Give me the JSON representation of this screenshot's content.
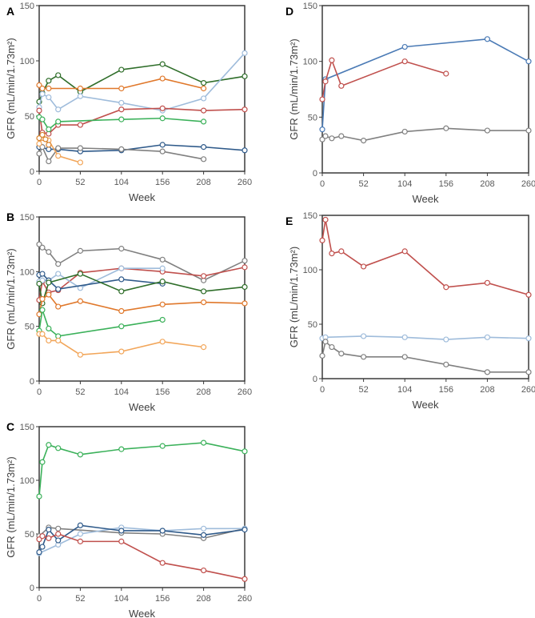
{
  "chart_data": [
    {
      "panel": "A",
      "type": "line",
      "xlabel": "Week",
      "ylabel": "GFR (mL/min/1.73m²)",
      "xlim": [
        0,
        260
      ],
      "ylim": [
        0,
        150
      ],
      "xticks": [
        0,
        52,
        104,
        156,
        208,
        260
      ],
      "yticks": [
        0,
        50,
        100,
        150
      ],
      "grid": false,
      "series": [
        {
          "color": "#2f6e2a",
          "points": [
            [
              0,
              63
            ],
            [
              4,
              71
            ],
            [
              12,
              82
            ],
            [
              24,
              87
            ],
            [
              52,
              72
            ],
            [
              104,
              92
            ],
            [
              156,
              97
            ],
            [
              208,
              80
            ],
            [
              260,
              86
            ]
          ]
        },
        {
          "color": "#e0782b",
          "points": [
            [
              0,
              78
            ],
            [
              4,
              75
            ],
            [
              12,
              75
            ],
            [
              52,
              75
            ],
            [
              104,
              75
            ],
            [
              156,
              84
            ],
            [
              208,
              75
            ]
          ]
        },
        {
          "color": "#9fbcdb",
          "points": [
            [
              0,
              58
            ],
            [
              4,
              70
            ],
            [
              12,
              67
            ],
            [
              24,
              56
            ],
            [
              52,
              68
            ],
            [
              104,
              62
            ],
            [
              156,
              55
            ],
            [
              208,
              66
            ],
            [
              260,
              107
            ]
          ]
        },
        {
          "color": "#c0504d",
          "points": [
            [
              0,
              55
            ],
            [
              4,
              35
            ],
            [
              12,
              34
            ],
            [
              24,
              42
            ],
            [
              52,
              42
            ],
            [
              104,
              56
            ],
            [
              156,
              57
            ],
            [
              208,
              55
            ],
            [
              260,
              56
            ]
          ]
        },
        {
          "color": "#3bb15a",
          "points": [
            [
              0,
              49
            ],
            [
              4,
              47
            ],
            [
              12,
              38
            ],
            [
              24,
              45
            ],
            [
              104,
              47
            ],
            [
              156,
              48
            ],
            [
              208,
              45
            ]
          ]
        },
        {
          "color": "#2f5a8a",
          "points": [
            [
              0,
              22
            ],
            [
              12,
              20
            ],
            [
              24,
              20
            ],
            [
              52,
              18
            ],
            [
              104,
              19
            ],
            [
              156,
              24
            ],
            [
              208,
              22
            ],
            [
              260,
              19
            ]
          ]
        },
        {
          "color": "#808080",
          "points": [
            [
              0,
              16
            ],
            [
              4,
              22
            ],
            [
              12,
              9
            ],
            [
              24,
              21
            ],
            [
              52,
              21
            ],
            [
              104,
              20
            ],
            [
              156,
              18
            ],
            [
              208,
              11
            ]
          ]
        },
        {
          "color": "#f2a65a",
          "points": [
            [
              0,
              25
            ],
            [
              4,
              30
            ],
            [
              12,
              28
            ],
            [
              24,
              14
            ],
            [
              52,
              8
            ]
          ]
        },
        {
          "color": "#d9822b",
          "points": [
            [
              0,
              30
            ],
            [
              4,
              33
            ],
            [
              8,
              29
            ],
            [
              12,
              24
            ]
          ]
        }
      ]
    },
    {
      "panel": "B",
      "type": "line",
      "xlabel": "Week",
      "ylabel": "GFR (mL/min/1.73m²)",
      "xlim": [
        0,
        260
      ],
      "ylim": [
        0,
        150
      ],
      "xticks": [
        0,
        52,
        104,
        156,
        208,
        260
      ],
      "yticks": [
        0,
        50,
        100,
        150
      ],
      "grid": false,
      "series": [
        {
          "color": "#808080",
          "points": [
            [
              0,
              125
            ],
            [
              4,
              122
            ],
            [
              12,
              118
            ],
            [
              24,
              107
            ],
            [
              52,
              119
            ],
            [
              104,
              121
            ],
            [
              156,
              111
            ],
            [
              208,
              92
            ],
            [
              260,
              110
            ]
          ]
        },
        {
          "color": "#c0504d",
          "points": [
            [
              0,
              74
            ],
            [
              4,
              91
            ],
            [
              12,
              81
            ],
            [
              24,
              83
            ],
            [
              52,
              99
            ],
            [
              104,
              103
            ],
            [
              156,
              100
            ],
            [
              208,
              96
            ],
            [
              260,
              104
            ]
          ]
        },
        {
          "color": "#9fbcdb",
          "points": [
            [
              0,
              91
            ],
            [
              4,
              92
            ],
            [
              12,
              92
            ],
            [
              24,
              98
            ],
            [
              52,
              85
            ],
            [
              104,
              103
            ],
            [
              156,
              103
            ]
          ]
        },
        {
          "color": "#2f5a8a",
          "points": [
            [
              0,
              97
            ],
            [
              4,
              98
            ],
            [
              12,
              92
            ],
            [
              24,
              84
            ],
            [
              104,
              93
            ],
            [
              156,
              89
            ]
          ]
        },
        {
          "color": "#2f6e2a",
          "points": [
            [
              0,
              89
            ],
            [
              4,
              71
            ],
            [
              12,
              90
            ],
            [
              52,
              98
            ],
            [
              104,
              82
            ],
            [
              156,
              91
            ],
            [
              208,
              82
            ],
            [
              260,
              86
            ]
          ]
        },
        {
          "color": "#e0782b",
          "points": [
            [
              0,
              61
            ],
            [
              4,
              75
            ],
            [
              12,
              79
            ],
            [
              24,
              68
            ],
            [
              52,
              73
            ],
            [
              104,
              64
            ],
            [
              156,
              70
            ],
            [
              208,
              72
            ],
            [
              260,
              71
            ]
          ]
        },
        {
          "color": "#3bb15a",
          "points": [
            [
              0,
              46
            ],
            [
              4,
              65
            ],
            [
              12,
              48
            ],
            [
              24,
              41
            ],
            [
              104,
              50
            ],
            [
              156,
              56
            ]
          ]
        },
        {
          "color": "#f2a65a",
          "points": [
            [
              0,
              43
            ],
            [
              4,
              43
            ],
            [
              12,
              37
            ],
            [
              24,
              37
            ],
            [
              52,
              24
            ],
            [
              104,
              27
            ],
            [
              156,
              36
            ],
            [
              208,
              31
            ]
          ]
        }
      ]
    },
    {
      "panel": "C",
      "type": "line",
      "xlabel": "Week",
      "ylabel": "GFR (mL/min/1.73m²)",
      "xlim": [
        0,
        260
      ],
      "ylim": [
        0,
        150
      ],
      "xticks": [
        0,
        52,
        104,
        156,
        208,
        260
      ],
      "yticks": [
        0,
        50,
        100,
        150
      ],
      "grid": false,
      "series": [
        {
          "color": "#3bb15a",
          "points": [
            [
              0,
              85
            ],
            [
              4,
              117
            ],
            [
              12,
              133
            ],
            [
              24,
              130
            ],
            [
              52,
              124
            ],
            [
              104,
              129
            ],
            [
              156,
              132
            ],
            [
              208,
              135
            ],
            [
              260,
              127
            ]
          ]
        },
        {
          "color": "#808080",
          "points": [
            [
              0,
              48
            ],
            [
              12,
              56
            ],
            [
              24,
              55
            ],
            [
              104,
              51
            ],
            [
              156,
              50
            ],
            [
              208,
              46
            ],
            [
              260,
              55
            ]
          ]
        },
        {
          "color": "#9fbcdb",
          "points": [
            [
              0,
              32
            ],
            [
              24,
              40
            ],
            [
              52,
              50
            ],
            [
              104,
              56
            ],
            [
              156,
              53
            ],
            [
              208,
              55
            ],
            [
              260,
              55
            ]
          ]
        },
        {
          "color": "#2f5a8a",
          "points": [
            [
              0,
              33
            ],
            [
              4,
              38
            ],
            [
              12,
              54
            ],
            [
              24,
              44
            ],
            [
              52,
              58
            ],
            [
              104,
              53
            ],
            [
              156,
              53
            ],
            [
              208,
              49
            ],
            [
              260,
              54
            ]
          ]
        },
        {
          "color": "#c0504d",
          "points": [
            [
              0,
              45
            ],
            [
              4,
              48
            ],
            [
              12,
              46
            ],
            [
              24,
              50
            ],
            [
              52,
              43
            ],
            [
              104,
              43
            ],
            [
              156,
              23
            ],
            [
              208,
              16
            ],
            [
              260,
              8
            ]
          ]
        }
      ]
    },
    {
      "panel": "D",
      "type": "line",
      "xlabel": "Week",
      "ylabel": "GFR (mL/min/1.73m²)",
      "xlim": [
        0,
        260
      ],
      "ylim": [
        0,
        150
      ],
      "xticks": [
        0,
        52,
        104,
        156,
        208,
        260
      ],
      "yticks": [
        0,
        50,
        100,
        150
      ],
      "grid": false,
      "series": [
        {
          "color": "#4a7ab5",
          "points": [
            [
              0,
              39
            ],
            [
              4,
              84
            ],
            [
              104,
              113
            ],
            [
              208,
              120
            ],
            [
              260,
              100
            ]
          ]
        },
        {
          "color": "#c0504d",
          "points": [
            [
              0,
              66
            ],
            [
              4,
              82
            ],
            [
              12,
              101
            ],
            [
              24,
              78
            ],
            [
              104,
              100
            ],
            [
              156,
              89
            ]
          ]
        },
        {
          "color": "#808080",
          "points": [
            [
              0,
              30
            ],
            [
              4,
              33
            ],
            [
              12,
              31
            ],
            [
              24,
              33
            ],
            [
              52,
              29
            ],
            [
              104,
              37
            ],
            [
              156,
              40
            ],
            [
              208,
              38
            ],
            [
              260,
              38
            ]
          ]
        }
      ]
    },
    {
      "panel": "E",
      "type": "line",
      "xlabel": "Week",
      "ylabel": "GFR (mL/min/1.73m²)",
      "xlim": [
        0,
        260
      ],
      "ylim": [
        0,
        150
      ],
      "xticks": [
        0,
        52,
        104,
        156,
        208,
        260
      ],
      "yticks": [
        0,
        50,
        100,
        150
      ],
      "grid": false,
      "series": [
        {
          "color": "#c0504d",
          "points": [
            [
              0,
              127
            ],
            [
              4,
              146
            ],
            [
              12,
              115
            ],
            [
              24,
              117
            ],
            [
              52,
              103
            ],
            [
              104,
              117
            ],
            [
              156,
              84
            ],
            [
              208,
              88
            ],
            [
              260,
              77
            ]
          ]
        },
        {
          "color": "#9fbcdb",
          "points": [
            [
              0,
              37
            ],
            [
              4,
              38
            ],
            [
              52,
              39
            ],
            [
              104,
              38
            ],
            [
              156,
              36
            ],
            [
              208,
              38
            ],
            [
              260,
              37
            ]
          ]
        },
        {
          "color": "#808080",
          "points": [
            [
              0,
              21
            ],
            [
              4,
              34
            ],
            [
              12,
              29
            ],
            [
              24,
              23
            ],
            [
              52,
              20
            ],
            [
              104,
              20
            ],
            [
              156,
              13
            ],
            [
              208,
              6
            ],
            [
              260,
              6
            ]
          ]
        }
      ]
    }
  ]
}
